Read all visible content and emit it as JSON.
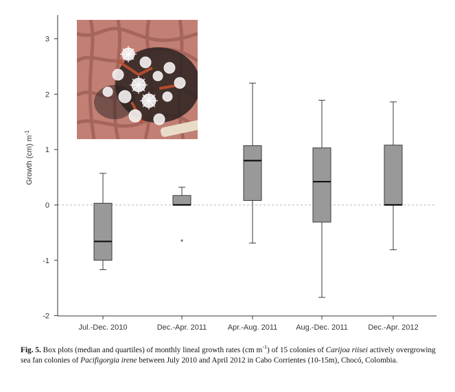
{
  "chart_data": {
    "type": "box",
    "xlabel": "",
    "ylabel": "Growth (cm) m",
    "ylabel_sup": "-1",
    "ylim": [
      -2,
      3.3
    ],
    "yticks": [
      -2,
      -1,
      0,
      1,
      2,
      3
    ],
    "ytick_labels": [
      "-2",
      "-1",
      "0",
      "1",
      "2",
      "3"
    ],
    "reference_line": 0,
    "grid": false,
    "categories": [
      "Jul.-Dec. 2010",
      "Dec.-Apr. 2011",
      "Apr.-Aug. 2011",
      "Aug.-Dec. 2011",
      "Dec.-Apr. 2012"
    ],
    "boxes": [
      {
        "min": -1.17,
        "q1": -1.0,
        "median": -0.66,
        "q3": 0.03,
        "max": 0.57,
        "outliers": []
      },
      {
        "min": 0.0,
        "q1": 0.0,
        "median": 0.0,
        "q3": 0.17,
        "max": 0.32,
        "outliers": [
          -0.65
        ]
      },
      {
        "min": -0.69,
        "q1": 0.08,
        "median": 0.8,
        "q3": 1.07,
        "max": 2.2,
        "outliers": []
      },
      {
        "min": -1.67,
        "q1": -0.31,
        "median": 0.42,
        "q3": 1.03,
        "max": 1.89,
        "outliers": []
      },
      {
        "min": -0.81,
        "q1": 0.0,
        "median": 0.0,
        "q3": 1.08,
        "max": 1.86,
        "outliers": []
      }
    ],
    "colors": {
      "box_fill": "#999999",
      "box_stroke": "#3a3a3a",
      "median": "#111111",
      "zero_line": "#b5b5b5"
    }
  },
  "caption": {
    "label": "Fig. 5.",
    "text_1": " Box plots (median and quartiles) of monthly lineal growth rates (cm m",
    "sup": "-1",
    "text_2": ") of 15 colonies of ",
    "species_1": "Carijoa riisei",
    "text_3": " actively overgrowing sea fan colonies of ",
    "species_2": "Pacifigorgia irene",
    "text_4": " between July 2010 and April 2012 in Cabo Corrientes (10-15m), Chocó, Colombia."
  }
}
